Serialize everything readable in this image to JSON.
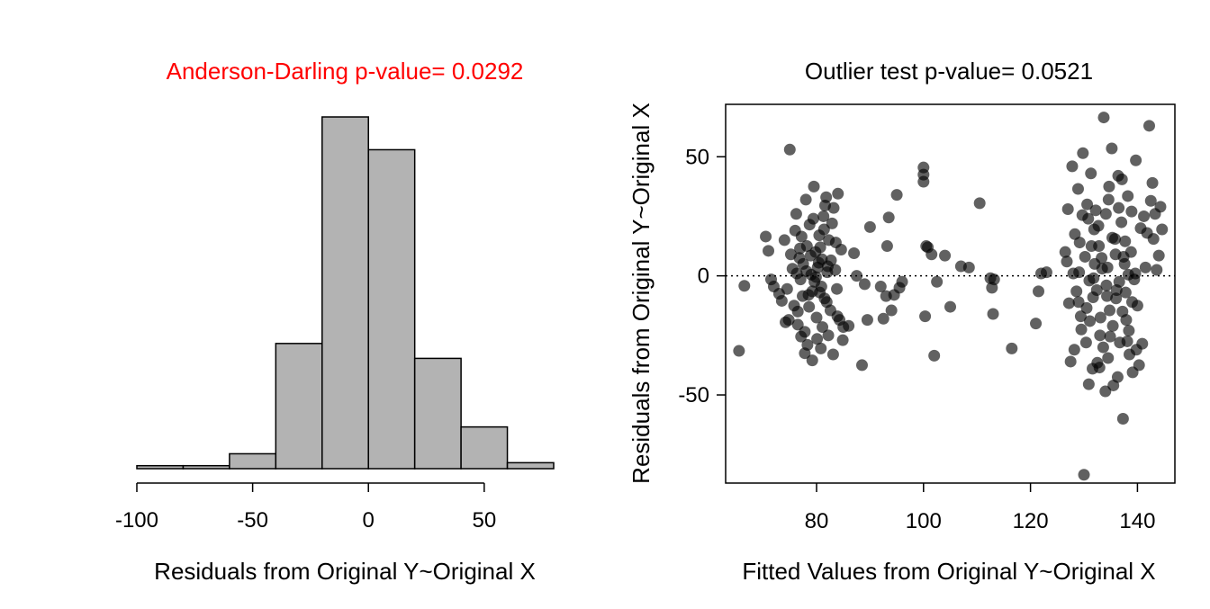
{
  "chart_data": [
    {
      "type": "bar",
      "title": "Anderson-Darling p-value= 0.0292",
      "title_color": "#ff0000",
      "xlabel": "Residuals from Original Y~Original X",
      "ylabel": "",
      "xlim": [
        -100,
        80
      ],
      "xticks": [
        -100,
        -50,
        0,
        50
      ],
      "xtick_labels": [
        "-100",
        "-50",
        "0",
        "50"
      ],
      "bin_edges": [
        -100,
        -80,
        -60,
        -40,
        -20,
        0,
        20,
        40,
        60,
        80
      ],
      "values": [
        1,
        1,
        5,
        42,
        118,
        107,
        37,
        14,
        2
      ],
      "bar_color": "#b3b3b3",
      "grid": false,
      "legend": "none"
    },
    {
      "type": "scatter",
      "title": "Outlier test p-value= 0.0521",
      "title_color": "#000000",
      "xlabel": "Fitted Values from Original Y~Original X",
      "ylabel": "Residuals from Original Y~Original X",
      "xlim": [
        63,
        147
      ],
      "ylim": [
        -87,
        72
      ],
      "xticks": [
        80,
        100,
        120,
        140
      ],
      "xtick_labels": [
        "80",
        "100",
        "120",
        "140"
      ],
      "yticks": [
        -50,
        0,
        50
      ],
      "ytick_labels": [
        "-50",
        "0",
        "50"
      ],
      "reference_line_y": 0,
      "point_color": "#000000",
      "grid": false,
      "legend": "none",
      "points": [
        [
          65.5,
          -31.5
        ],
        [
          66.5,
          -4.2
        ],
        [
          70.5,
          16.5
        ],
        [
          71,
          10.5
        ],
        [
          71.5,
          -1.5
        ],
        [
          72,
          -4.5
        ],
        [
          73,
          -7.5
        ],
        [
          73.5,
          -10.5
        ],
        [
          74,
          15
        ],
        [
          74.5,
          -5.5
        ],
        [
          74.2,
          -19.5
        ],
        [
          74.8,
          -18.5
        ],
        [
          75.2,
          9
        ],
        [
          75.5,
          3
        ],
        [
          75.8,
          -12.5
        ],
        [
          76,
          19
        ],
        [
          76.3,
          1
        ],
        [
          76.5,
          -15
        ],
        [
          75,
          53
        ],
        [
          76.2,
          26
        ],
        [
          76.8,
          7.5
        ],
        [
          77,
          -1.5
        ],
        [
          77.2,
          16.5
        ],
        [
          77.5,
          5
        ],
        [
          77.8,
          -23.5
        ],
        [
          78,
          32
        ],
        [
          78.2,
          12.5
        ],
        [
          78.5,
          -8
        ],
        [
          78.7,
          21.5
        ],
        [
          79,
          0.5
        ],
        [
          79.2,
          -6.5
        ],
        [
          79.5,
          37.5
        ],
        [
          79.8,
          10
        ],
        [
          80,
          -17.5
        ],
        [
          80.2,
          3.5
        ],
        [
          80.5,
          17
        ],
        [
          80.8,
          -30.5
        ],
        [
          81,
          7
        ],
        [
          81.3,
          25
        ],
        [
          81.5,
          -9.5
        ],
        [
          81.8,
          33
        ],
        [
          82,
          1.5
        ],
        [
          82.3,
          15
        ],
        [
          82.6,
          -14.5
        ],
        [
          82.9,
          22
        ],
        [
          83.2,
          28.5
        ],
        [
          83.5,
          2.5
        ],
        [
          83.8,
          -5.5
        ],
        [
          84,
          34.5
        ],
        [
          84.3,
          -18.5
        ],
        [
          84.6,
          11
        ],
        [
          84.9,
          -27
        ],
        [
          76.5,
          -20.5
        ],
        [
          77.8,
          -32.5
        ],
        [
          78.3,
          -29
        ],
        [
          79.2,
          -35.5
        ],
        [
          80.1,
          -26.5
        ],
        [
          81.1,
          -21.5
        ],
        [
          82.2,
          -25
        ],
        [
          83.1,
          -33
        ],
        [
          78.9,
          8.5
        ],
        [
          79.6,
          -2.5
        ],
        [
          80.7,
          12
        ],
        [
          81.9,
          -11
        ],
        [
          78.1,
          2
        ],
        [
          80.4,
          5.5
        ],
        [
          77.4,
          -8.5
        ],
        [
          82.7,
          6.5
        ],
        [
          79.9,
          -0.5
        ],
        [
          81.4,
          19.5
        ],
        [
          83.6,
          14
        ],
        [
          76.9,
          11.5
        ],
        [
          80.9,
          -4.5
        ],
        [
          82.1,
          4
        ],
        [
          78.6,
          -13
        ],
        [
          81.6,
          29.5
        ],
        [
          79.4,
          24
        ],
        [
          83.9,
          -17
        ],
        [
          77.1,
          -25.5
        ],
        [
          80.6,
          -7
        ],
        [
          85,
          -21.5
        ],
        [
          86,
          -21
        ],
        [
          87,
          9.5
        ],
        [
          87.5,
          0
        ],
        [
          88.5,
          -37.5
        ],
        [
          89,
          -3.5
        ],
        [
          89.5,
          -18.5
        ],
        [
          90,
          20.5
        ],
        [
          92,
          -4.5
        ],
        [
          92.5,
          -18
        ],
        [
          93,
          -8.5
        ],
        [
          93.2,
          12.5
        ],
        [
          93.5,
          24.5
        ],
        [
          94,
          -14.5
        ],
        [
          94.5,
          -8
        ],
        [
          95,
          34
        ],
        [
          95.5,
          -5
        ],
        [
          96,
          -2.5
        ],
        [
          100,
          39.5
        ],
        [
          100,
          42.5
        ],
        [
          100,
          45.5
        ],
        [
          100.5,
          12.5
        ],
        [
          100.8,
          12
        ],
        [
          100.3,
          -17
        ],
        [
          101.5,
          9
        ],
        [
          102,
          -33.5
        ],
        [
          102.5,
          -2.5
        ],
        [
          104,
          8.5
        ],
        [
          105,
          -13
        ],
        [
          107,
          4
        ],
        [
          108.5,
          3.5
        ],
        [
          110.5,
          30.5
        ],
        [
          112.5,
          -1
        ],
        [
          112.8,
          -5
        ],
        [
          113,
          -16
        ],
        [
          113.2,
          -1.5
        ],
        [
          116.5,
          -30.5
        ],
        [
          121,
          -20
        ],
        [
          121.5,
          -6.5
        ],
        [
          122,
          1
        ],
        [
          123,
          1.5
        ],
        [
          126.5,
          10
        ],
        [
          126.8,
          6
        ],
        [
          127,
          28
        ],
        [
          127.2,
          -11.5
        ],
        [
          127.5,
          -36
        ],
        [
          127.8,
          46
        ],
        [
          128,
          1
        ],
        [
          128.3,
          17.5
        ],
        [
          128.6,
          -6.5
        ],
        [
          128.9,
          36.5
        ],
        [
          129.2,
          14
        ],
        [
          129.5,
          -22.5
        ],
        [
          129.8,
          51.5
        ],
        [
          130,
          -83.5
        ],
        [
          130.2,
          8
        ],
        [
          130.5,
          -13.5
        ],
        [
          130.8,
          24
        ],
        [
          131,
          -2
        ],
        [
          131.3,
          43
        ],
        [
          131.6,
          -39
        ],
        [
          131.9,
          19.5
        ],
        [
          132.2,
          27.5
        ],
        [
          132.5,
          -36.5
        ],
        [
          132.8,
          12.5
        ],
        [
          133.1,
          -17.5
        ],
        [
          133.4,
          3
        ],
        [
          133.7,
          66.5
        ],
        [
          134,
          -48.5
        ],
        [
          134.3,
          -8.5
        ],
        [
          134.6,
          32
        ],
        [
          134.9,
          -25.5
        ],
        [
          135.2,
          53.5
        ],
        [
          135.5,
          -46
        ],
        [
          135.8,
          15.5
        ],
        [
          136.1,
          -6
        ],
        [
          136.4,
          42
        ],
        [
          136.7,
          -28
        ],
        [
          137,
          22.5
        ],
        [
          137.3,
          -60
        ],
        [
          137.6,
          5
        ],
        [
          137.9,
          -18.5
        ],
        [
          138.2,
          33.5
        ],
        [
          138.5,
          -33
        ],
        [
          138.8,
          10
        ],
        [
          139.1,
          -40.5
        ],
        [
          139.4,
          -1.5
        ],
        [
          139.7,
          48.5
        ],
        [
          140,
          -12.5
        ],
        [
          140.3,
          -37.5
        ],
        [
          140.6,
          20
        ],
        [
          140.9,
          -28.5
        ],
        [
          141.2,
          25
        ],
        [
          141.5,
          3.5
        ],
        [
          141.8,
          18
        ],
        [
          142.2,
          63
        ],
        [
          142.5,
          31.5
        ],
        [
          142.8,
          39
        ],
        [
          143,
          15.5
        ],
        [
          143.3,
          26
        ],
        [
          143.6,
          2.5
        ],
        [
          144,
          8.5
        ],
        [
          144.3,
          29
        ],
        [
          144.6,
          19.5
        ],
        [
          129,
          -11
        ],
        [
          130.4,
          -28
        ],
        [
          131.1,
          -19
        ],
        [
          131.7,
          -9
        ],
        [
          132.4,
          -6
        ],
        [
          133,
          -25
        ],
        [
          133.6,
          -30
        ],
        [
          134.2,
          -4
        ],
        [
          134.8,
          -14.5
        ],
        [
          135.4,
          -21
        ],
        [
          136,
          -9.5
        ],
        [
          136.6,
          -2.5
        ],
        [
          137.2,
          -15
        ],
        [
          137.8,
          -7
        ],
        [
          138.4,
          -23
        ],
        [
          139,
          -11
        ],
        [
          139.6,
          1
        ],
        [
          129.7,
          25.5
        ],
        [
          130.6,
          30
        ],
        [
          131.4,
          12.5
        ],
        [
          132,
          5
        ],
        [
          132.7,
          21
        ],
        [
          133.3,
          7.5
        ],
        [
          134.1,
          26
        ],
        [
          134.7,
          37.5
        ],
        [
          135.3,
          16
        ],
        [
          135.9,
          9
        ],
        [
          136.5,
          28.5
        ],
        [
          137.1,
          40.5
        ],
        [
          137.7,
          14.5
        ],
        [
          138.3,
          0.5
        ],
        [
          138.9,
          27
        ],
        [
          128.2,
          -31
        ],
        [
          129.4,
          -17
        ],
        [
          130.9,
          -45.5
        ],
        [
          132.9,
          -38.5
        ],
        [
          134.5,
          -34.5
        ],
        [
          136.3,
          -42.5
        ],
        [
          138.1,
          -27.5
        ],
        [
          139.8,
          -31
        ],
        [
          129.1,
          1.5
        ],
        [
          131.8,
          -1
        ],
        [
          134.4,
          3.5
        ],
        [
          137.4,
          8
        ]
      ]
    }
  ]
}
